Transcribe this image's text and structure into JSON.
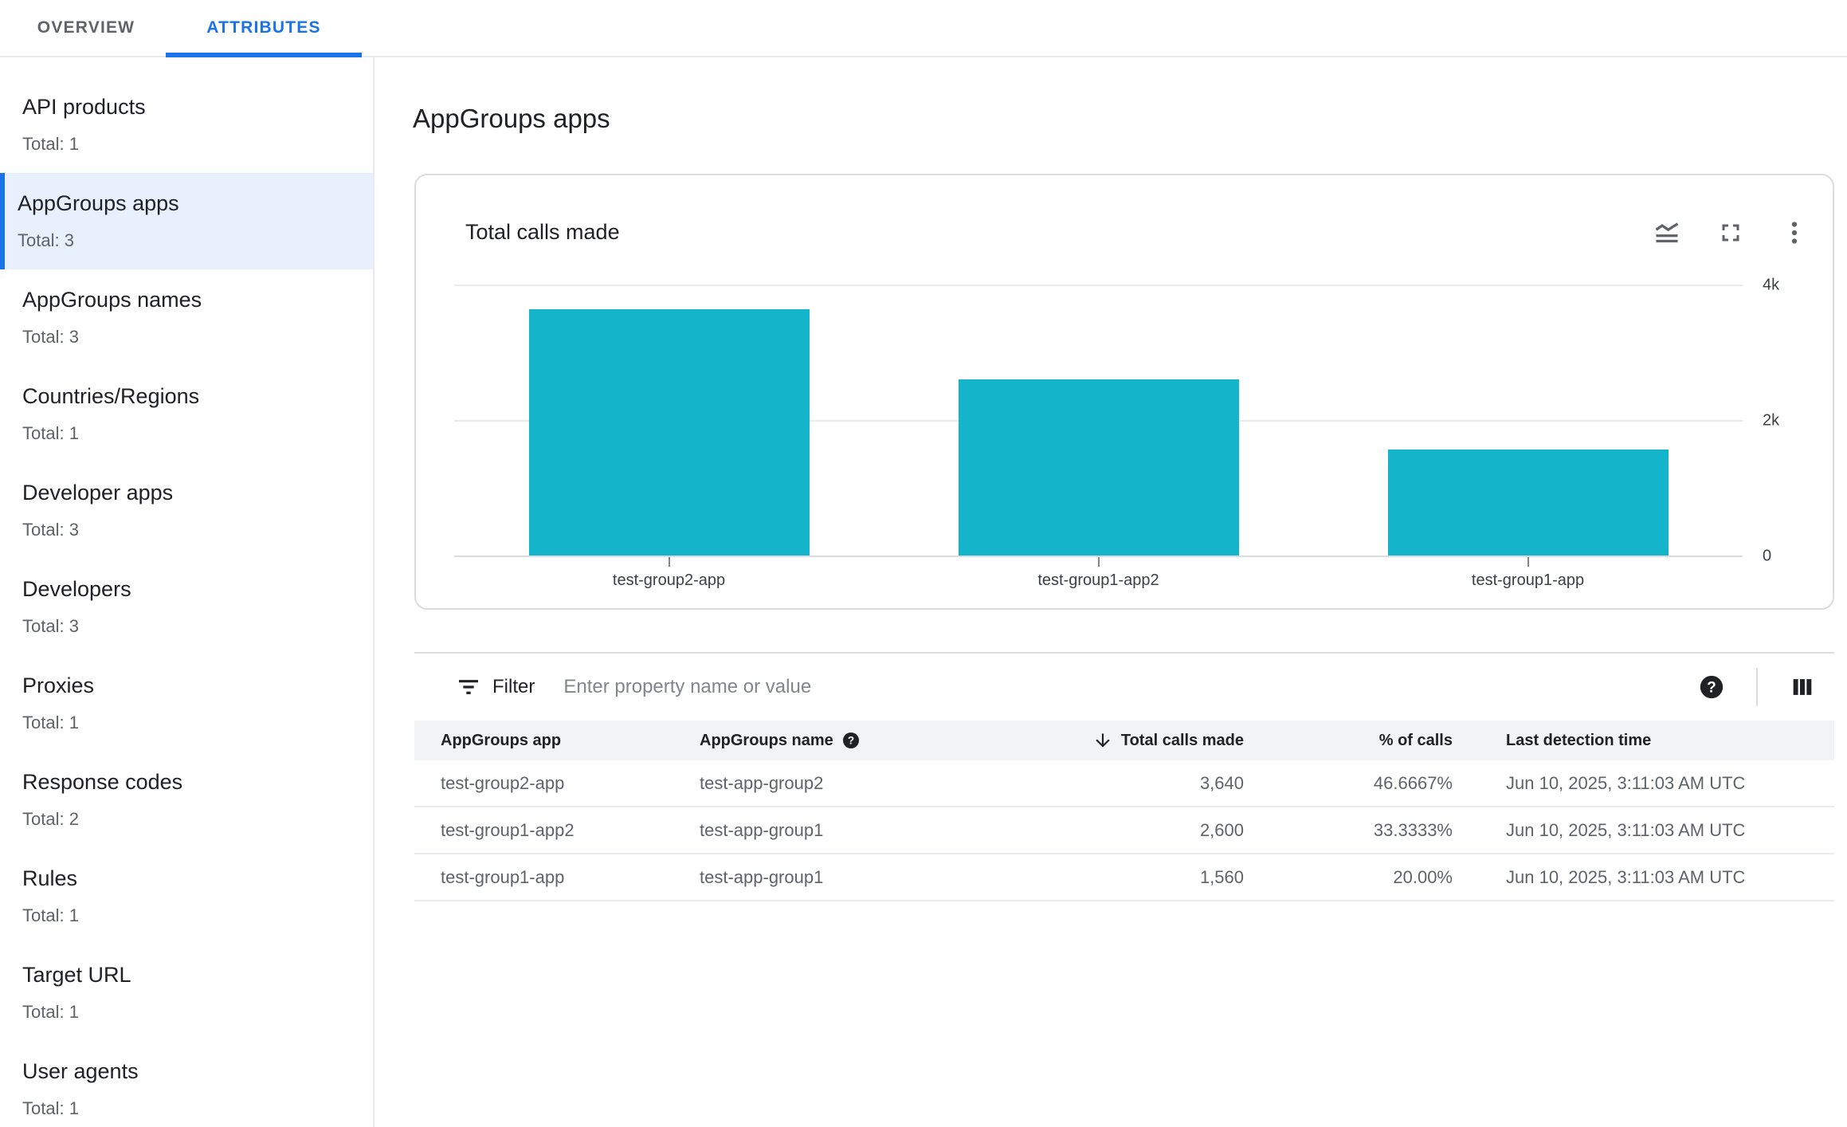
{
  "tabs": [
    {
      "label": "OVERVIEW",
      "active": false
    },
    {
      "label": "ATTRIBUTES",
      "active": true
    }
  ],
  "sidebar": {
    "items": [
      {
        "label": "API products",
        "total": "Total: 1",
        "selected": false
      },
      {
        "label": "AppGroups apps",
        "total": "Total: 3",
        "selected": true
      },
      {
        "label": "AppGroups names",
        "total": "Total: 3",
        "selected": false
      },
      {
        "label": "Countries/Regions",
        "total": "Total: 1",
        "selected": false
      },
      {
        "label": "Developer apps",
        "total": "Total: 3",
        "selected": false
      },
      {
        "label": "Developers",
        "total": "Total: 3",
        "selected": false
      },
      {
        "label": "Proxies",
        "total": "Total: 1",
        "selected": false
      },
      {
        "label": "Response codes",
        "total": "Total: 2",
        "selected": false
      },
      {
        "label": "Rules",
        "total": "Total: 1",
        "selected": false
      },
      {
        "label": "Target URL",
        "total": "Total: 1",
        "selected": false
      },
      {
        "label": "User agents",
        "total": "Total: 1",
        "selected": false
      }
    ]
  },
  "page": {
    "title": "AppGroups apps"
  },
  "chart_card": {
    "title": "Total calls made",
    "icons": [
      "chart-type",
      "fullscreen",
      "more-options"
    ]
  },
  "chart_data": {
    "type": "bar",
    "title": "Total calls made",
    "categories": [
      "test-group2-app",
      "test-group1-app2",
      "test-group1-app"
    ],
    "values": [
      3640,
      2600,
      1560
    ],
    "xlabel": "",
    "ylabel": "",
    "ylim": [
      0,
      4000
    ],
    "yticks": [
      {
        "value": 0,
        "label": "0"
      },
      {
        "value": 2000,
        "label": "2k"
      },
      {
        "value": 4000,
        "label": "4k"
      }
    ],
    "bar_color": "#14b4ca",
    "grid": "horizontal",
    "ytick_position": "right",
    "legend": "none"
  },
  "filter": {
    "label": "Filter",
    "placeholder": "Enter property name or value"
  },
  "table": {
    "columns": [
      {
        "label": "AppGroups app",
        "align": "left"
      },
      {
        "label": "AppGroups name",
        "align": "left",
        "help_icon": true
      },
      {
        "label": "Total calls made",
        "align": "right",
        "sorted": "desc"
      },
      {
        "label": "% of calls",
        "align": "right"
      },
      {
        "label": "Last detection time",
        "align": "left"
      }
    ],
    "rows": [
      [
        "test-group2-app",
        "test-app-group2",
        "3,640",
        "46.6667%",
        "Jun 10, 2025, 3:11:03 AM UTC"
      ],
      [
        "test-group1-app2",
        "test-app-group1",
        "2,600",
        "33.3333%",
        "Jun 10, 2025, 3:11:03 AM UTC"
      ],
      [
        "test-group1-app",
        "test-app-group1",
        "1,560",
        "20.00%",
        "Jun 10, 2025, 3:11:03 AM UTC"
      ]
    ]
  },
  "colors": {
    "accent": "#1a73e8",
    "selected_bg": "#e8f0fe",
    "bar": "#14b4ca",
    "border": "#dadce0",
    "header_bg": "#f1f3f4",
    "text_primary": "#202124",
    "text_secondary": "#5f6368"
  }
}
